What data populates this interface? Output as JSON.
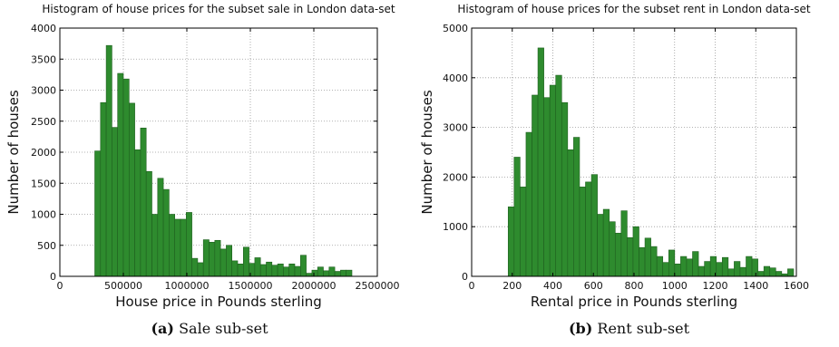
{
  "figure": {
    "captions": [
      {
        "letter": "(a)",
        "text": "Sale sub-set"
      },
      {
        "letter": "(b)",
        "text": "Rent sub-set"
      }
    ]
  },
  "chart_data": [
    {
      "type": "bar",
      "title": "Histogram of house prices for the subset sale in  London data-set",
      "xlabel": "House price in Pounds sterling",
      "ylabel": "Number of houses",
      "xlim": [
        0,
        2500000
      ],
      "ylim": [
        0,
        4000
      ],
      "xticks": [
        "0",
        "500000",
        "1000000",
        "1500000",
        "2000000",
        "2500000"
      ],
      "yticks": [
        "0",
        "500",
        "1000",
        "1500",
        "2000",
        "2500",
        "3000",
        "3500",
        "4000"
      ],
      "grid": true,
      "bar_color": "#2e8b2e",
      "bin_start": 275000,
      "bin_width": 45000,
      "values": [
        2020,
        2800,
        3720,
        2400,
        3270,
        3180,
        2790,
        2040,
        2390,
        1690,
        1000,
        1580,
        1400,
        1000,
        920,
        920,
        1030,
        290,
        220,
        590,
        550,
        580,
        440,
        500,
        250,
        200,
        470,
        210,
        300,
        190,
        230,
        180,
        200,
        150,
        200,
        160,
        340,
        50,
        100,
        150,
        90,
        150,
        80,
        100,
        100
      ]
    },
    {
      "type": "bar",
      "title": "Histogram of house prices for the subset rent in  London data-set",
      "xlabel": "Rental price in Pounds sterling",
      "ylabel": "Number of houses",
      "xlim": [
        0,
        1600
      ],
      "ylim": [
        0,
        5000
      ],
      "xticks": [
        "0",
        "200",
        "400",
        "600",
        "800",
        "1000",
        "1200",
        "1400",
        "1600"
      ],
      "yticks": [
        "0",
        "1000",
        "2000",
        "3000",
        "4000",
        "5000"
      ],
      "grid": true,
      "bar_color": "#2e8b2e",
      "bin_start": 180,
      "bin_width": 29.3,
      "values": [
        1400,
        2400,
        1800,
        2900,
        3650,
        4600,
        3600,
        3850,
        4050,
        3500,
        2550,
        2800,
        1800,
        1900,
        2050,
        1250,
        1350,
        1100,
        870,
        1320,
        780,
        1000,
        580,
        770,
        600,
        400,
        280,
        530,
        250,
        400,
        350,
        500,
        200,
        300,
        400,
        280,
        380,
        150,
        300,
        180,
        400,
        350,
        100,
        200,
        170,
        100,
        50,
        150
      ]
    }
  ]
}
